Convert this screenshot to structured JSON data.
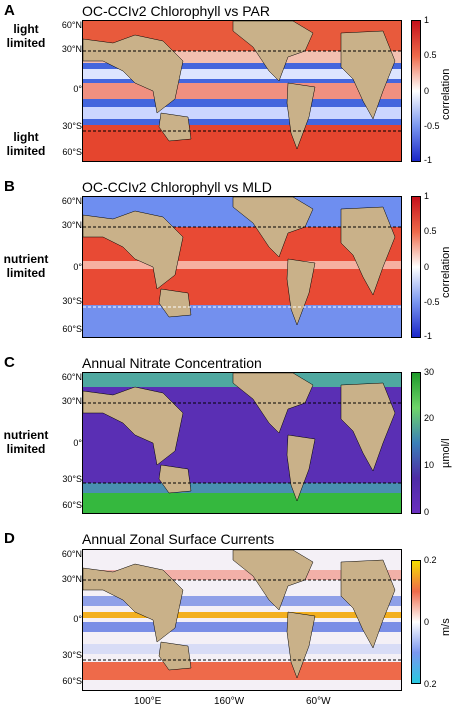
{
  "panels": [
    {
      "letter": "A",
      "title": "OC-CCIv2 Chlorophyll vs PAR",
      "side_top": "light limited",
      "side_bottom": "light limited",
      "cbar_label": "correlation",
      "ticks": [
        "1",
        "0.5",
        "0",
        "-0.5",
        "-1"
      ]
    },
    {
      "letter": "B",
      "title": "OC-CCIv2 Chlorophyll vs MLD",
      "side_top": "",
      "side_bottom": "",
      "side_mid": "nutrient limited",
      "cbar_label": "correlation",
      "ticks": [
        "1",
        "0.5",
        "0",
        "-0.5",
        "-1"
      ]
    },
    {
      "letter": "C",
      "title": "Annual Nitrate Concentration",
      "side_mid": "nutrient limited",
      "cbar_label": "µmol/l",
      "ticks": [
        "30",
        "20",
        "10",
        "0"
      ]
    },
    {
      "letter": "D",
      "title": "Annual Zonal Surface Currents",
      "cbar_label": "m/s",
      "ticks": [
        "0.2",
        "0",
        "0.2"
      ]
    }
  ],
  "lat_labels": [
    "60°N",
    "30°N",
    "0°",
    "30°S",
    "60°S"
  ],
  "lon_labels": [
    "100°E",
    "160°W",
    "60°W"
  ],
  "colors": {
    "land": "#c9b189",
    "red": "#e4412b",
    "blue": "#2a4fd4",
    "white": "#ffffff",
    "purple": "#5b2fb5",
    "green": "#33b83a"
  }
}
